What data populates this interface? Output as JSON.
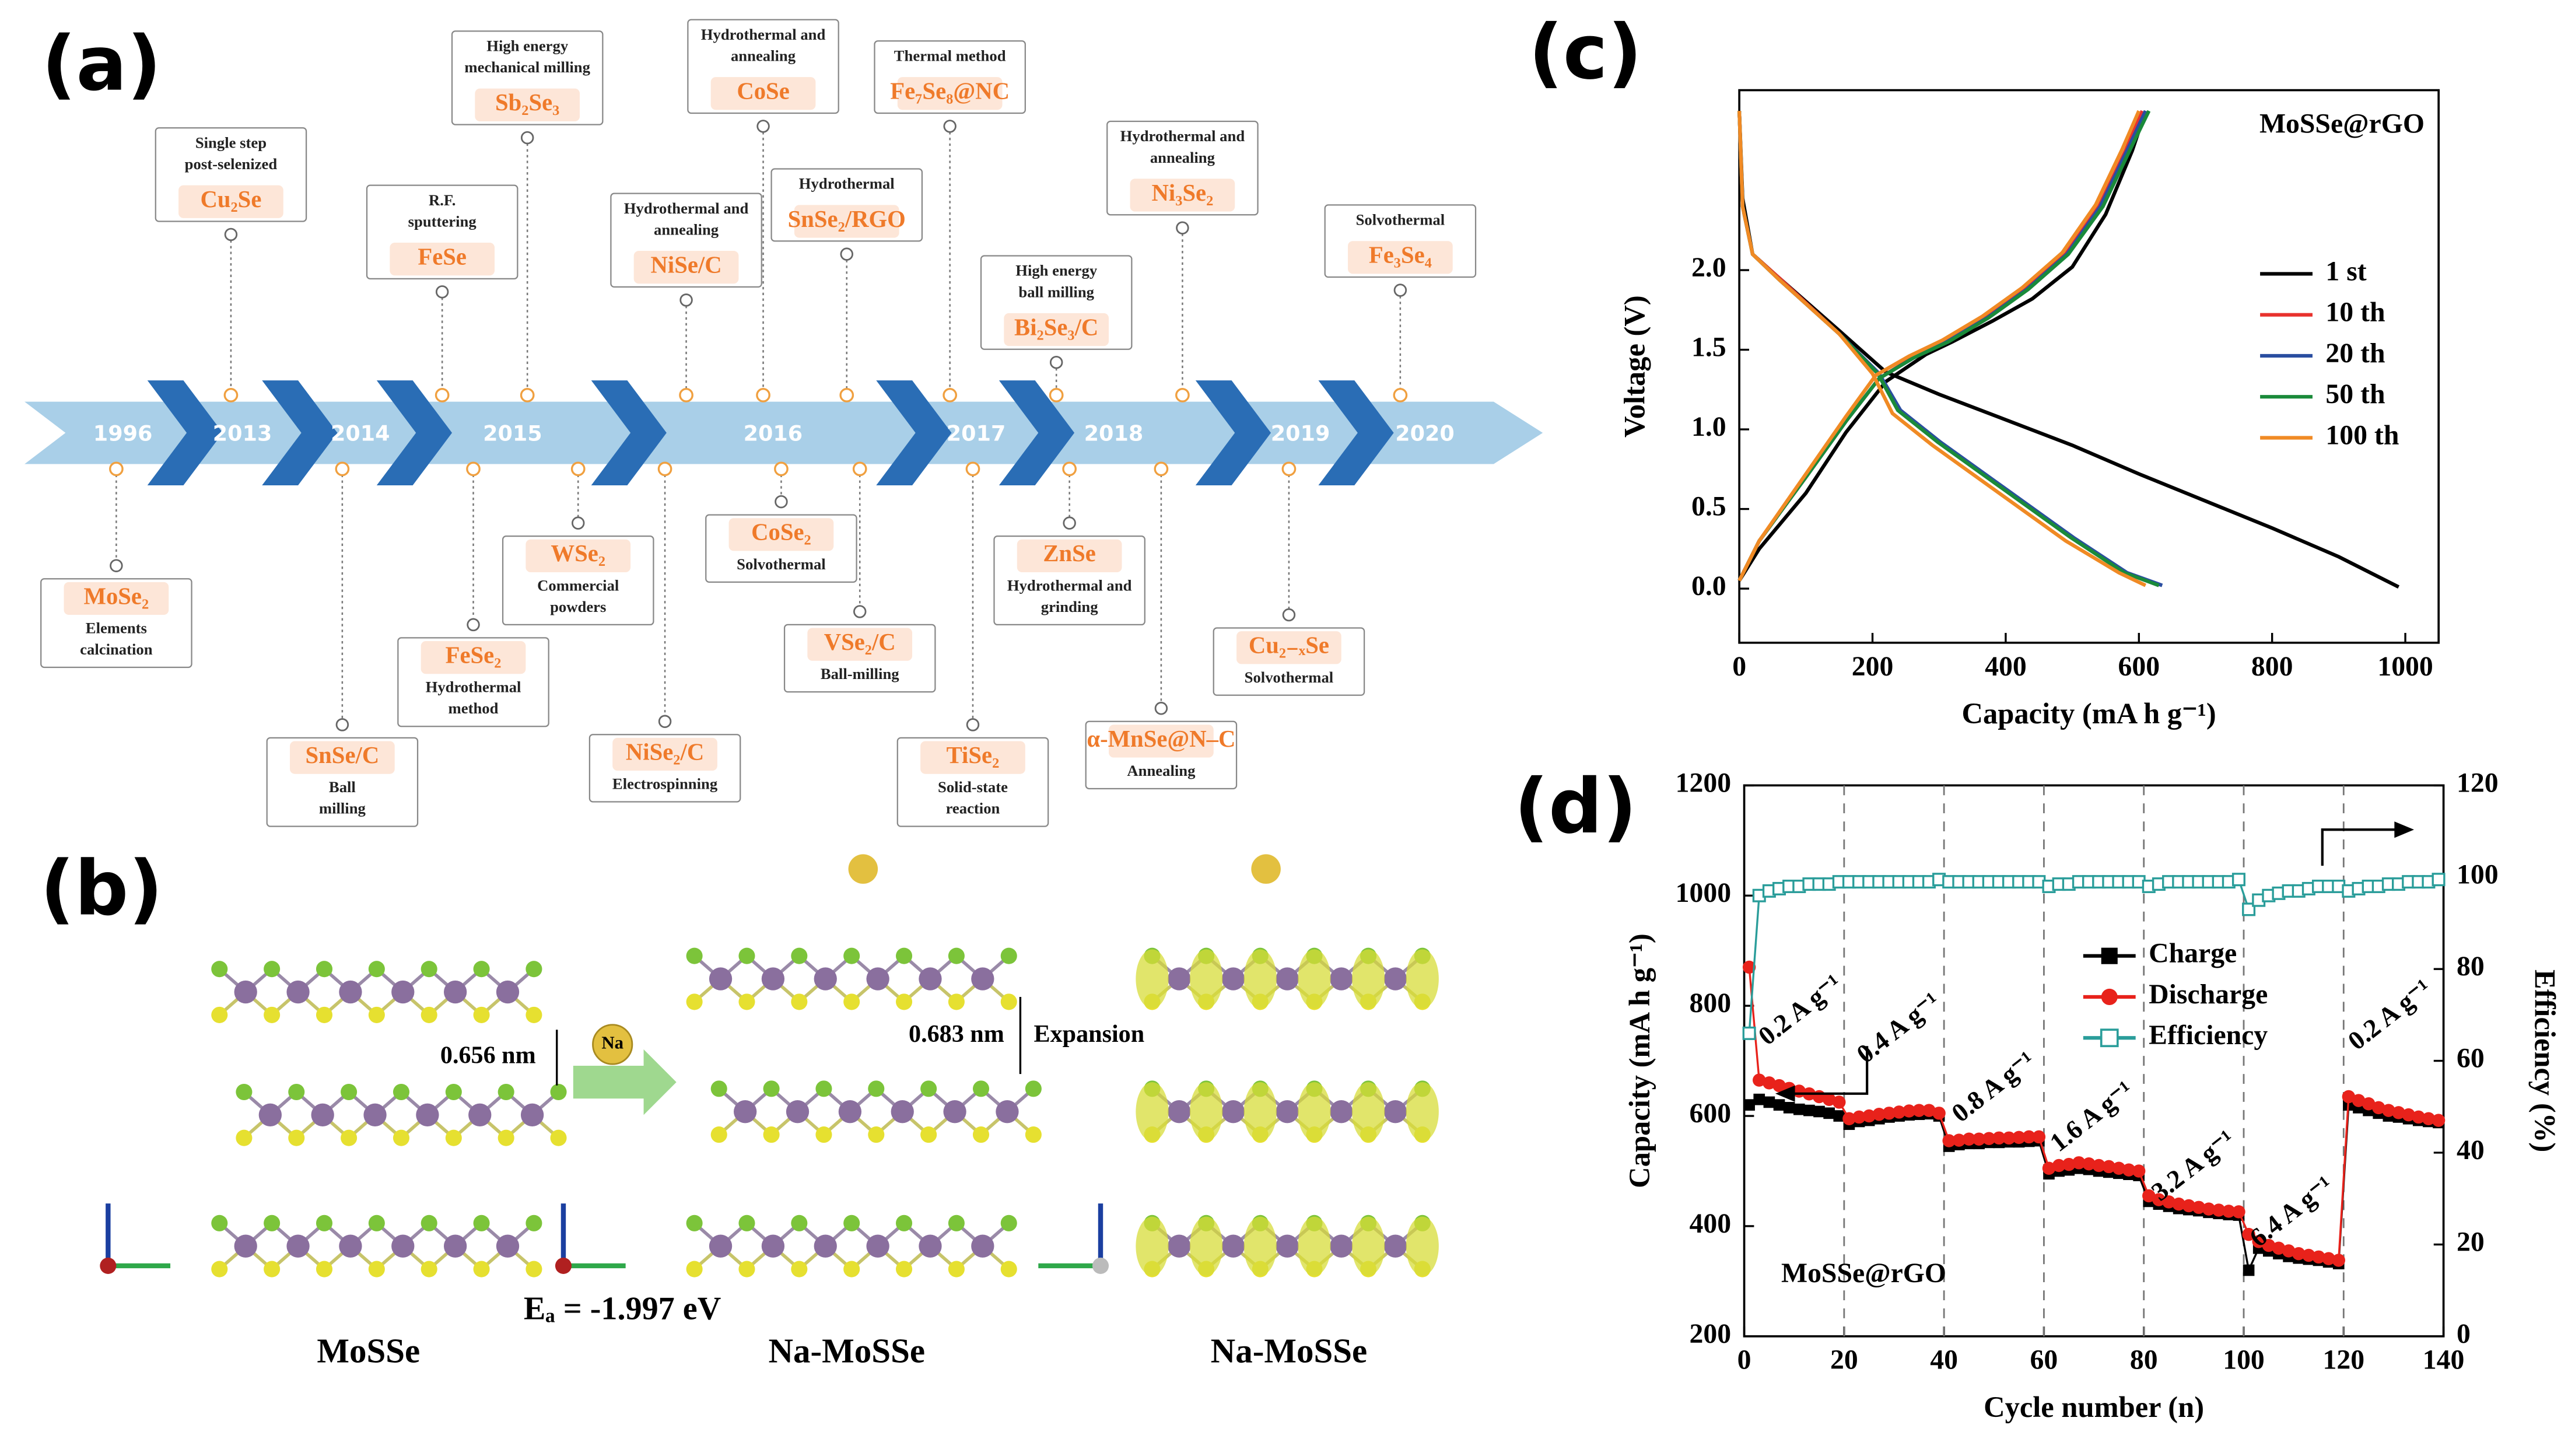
{
  "panel_labels": [
    "(a)",
    "(b)",
    "(c)",
    "(d)"
  ],
  "timeline": {
    "years": [
      "1996",
      "2013",
      "2014",
      "2015",
      "2016",
      "2017",
      "2018",
      "2019",
      "2020"
    ],
    "above": [
      {
        "material": "Cu₂Se",
        "method": [
          "Single step",
          "post-selenized"
        ]
      },
      {
        "material": "FeSe",
        "method": [
          "R.F.",
          "sputtering"
        ]
      },
      {
        "material": "Sb₂Se₃",
        "method": [
          "High energy",
          "mechanical milling"
        ]
      },
      {
        "material": "NiSe/C",
        "method": [
          "Hydrothermal and",
          "annealing"
        ]
      },
      {
        "material": "CoSe",
        "method": [
          "Hydrothermal and",
          "annealing"
        ]
      },
      {
        "material": "SnSe₂/RGO",
        "method": [
          "Hydrothermal"
        ]
      },
      {
        "material": "Fe₇Se₈@NC",
        "method": [
          "Thermal method"
        ]
      },
      {
        "material": "Bi₂Se₃/C",
        "method": [
          "High energy",
          "ball milling"
        ]
      },
      {
        "material": "Ni₃Se₂",
        "method": [
          "Hydrothermal and",
          "annealing"
        ]
      },
      {
        "material": "Fe₃Se₄",
        "method": [
          "Solvothermal"
        ]
      }
    ],
    "below": [
      {
        "material": "MoSe₂",
        "method": [
          "Elements",
          "calcination"
        ]
      },
      {
        "material": "SnSe/C",
        "method": [
          "Ball",
          "milling"
        ]
      },
      {
        "material": "FeSe₂",
        "method": [
          "Hydrothermal",
          "method"
        ]
      },
      {
        "material": "WSe₂",
        "method": [
          "Commercial",
          "powders"
        ]
      },
      {
        "material": "NiSe₂/C",
        "method": [
          "Electrospinning"
        ]
      },
      {
        "material": "CoSe₂",
        "method": [
          "Solvothermal"
        ]
      },
      {
        "material": "VSe₂/C",
        "method": [
          "Ball-milling"
        ]
      },
      {
        "material": "TiSe₂",
        "method": [
          "Solid-state",
          "reaction"
        ]
      },
      {
        "material": "ZnSe",
        "method": [
          "Hydrothermal and",
          "grinding"
        ]
      },
      {
        "material": "α-MnSe@N–C",
        "method": [
          "Annealing"
        ]
      },
      {
        "material": "Cu₂₋ₓSe",
        "method": [
          "Solvothermal"
        ]
      }
    ]
  },
  "structure": {
    "titles": [
      "MoSSe",
      "Na-MoSSe",
      "Na-MoSSe"
    ],
    "spacing_before": "0.656 nm",
    "spacing_after": "0.683 nm",
    "expansion": "Expansion",
    "ion": "Na",
    "energy": "Eₐ = -1.997 eV"
  },
  "chart_data": [
    {
      "type": "line",
      "xlabel": "Capacity (mA h g⁻¹)",
      "ylabel": "Voltage (V)",
      "annotation": "MoSSe@rGO",
      "xlim": [
        0,
        1050
      ],
      "ylim": [
        -0.34,
        3.13
      ],
      "xticks": [
        0,
        200,
        400,
        600,
        800,
        1000
      ],
      "yticks": [
        {
          "value": 0,
          "label": "0.0"
        },
        0.5,
        {
          "value": 1,
          "label": "1.0"
        },
        1.5,
        {
          "value": 2,
          "label": "2.0"
        }
      ],
      "series": [
        {
          "name": "1 st",
          "color": "#000000",
          "x": [
            0,
            5,
            20,
            60,
            150,
            220,
            300,
            400,
            500,
            600,
            700,
            800,
            900,
            990,
            null,
            0,
            30,
            100,
            160,
            220,
            280,
            320,
            380,
            440,
            500,
            550,
            590,
            610
          ],
          "values": [
            3.0,
            2.45,
            2.1,
            1.95,
            1.62,
            1.36,
            1.22,
            1.06,
            0.9,
            0.72,
            0.55,
            0.38,
            0.2,
            0.01,
            null,
            0.05,
            0.25,
            0.6,
            0.98,
            1.3,
            1.47,
            1.55,
            1.68,
            1.82,
            2.02,
            2.35,
            2.75,
            3.0
          ]
        },
        {
          "name": "10 th",
          "color": "#e8322d",
          "x": [
            0,
            5,
            20,
            60,
            150,
            210,
            240,
            300,
            400,
            500,
            580,
            630,
            null,
            0,
            30,
            100,
            160,
            210,
            260,
            310,
            370,
            430,
            490,
            540,
            580,
            605
          ],
          "values": [
            3.0,
            2.4,
            2.1,
            1.95,
            1.6,
            1.35,
            1.12,
            0.92,
            0.62,
            0.32,
            0.1,
            0.02,
            null,
            0.05,
            0.3,
            0.7,
            1.05,
            1.32,
            1.45,
            1.55,
            1.7,
            1.88,
            2.1,
            2.4,
            2.75,
            3.0
          ]
        },
        {
          "name": "20 th",
          "color": "#2a4ea0",
          "x": [
            0,
            5,
            20,
            60,
            150,
            210,
            242,
            302,
            402,
            502,
            582,
            635,
            null,
            0,
            30,
            100,
            160,
            210,
            262,
            312,
            372,
            432,
            492,
            542,
            582,
            610
          ],
          "values": [
            3.0,
            2.4,
            2.1,
            1.94,
            1.6,
            1.35,
            1.12,
            0.92,
            0.62,
            0.32,
            0.1,
            0.02,
            null,
            0.05,
            0.3,
            0.7,
            1.05,
            1.32,
            1.45,
            1.55,
            1.7,
            1.88,
            2.1,
            2.4,
            2.75,
            3.0
          ]
        },
        {
          "name": "50 th",
          "color": "#1a8a3a",
          "x": [
            0,
            5,
            20,
            60,
            150,
            208,
            238,
            298,
            398,
            498,
            578,
            630,
            null,
            0,
            30,
            100,
            160,
            210,
            262,
            314,
            374,
            434,
            494,
            546,
            586,
            615
          ],
          "values": [
            3.0,
            2.4,
            2.1,
            1.94,
            1.6,
            1.35,
            1.12,
            0.92,
            0.62,
            0.32,
            0.1,
            0.02,
            null,
            0.05,
            0.3,
            0.7,
            1.05,
            1.32,
            1.45,
            1.55,
            1.7,
            1.88,
            2.1,
            2.4,
            2.75,
            3.0
          ]
        },
        {
          "name": "100 th",
          "color": "#f08a24",
          "x": [
            0,
            5,
            20,
            60,
            150,
            200,
            230,
            290,
            390,
            490,
            570,
            610,
            null,
            0,
            30,
            100,
            160,
            205,
            255,
            305,
            365,
            425,
            485,
            535,
            575,
            600
          ],
          "values": [
            3.0,
            2.4,
            2.1,
            1.94,
            1.6,
            1.35,
            1.1,
            0.9,
            0.6,
            0.3,
            0.1,
            0.02,
            null,
            0.05,
            0.3,
            0.72,
            1.08,
            1.34,
            1.46,
            1.56,
            1.71,
            1.89,
            2.11,
            2.41,
            2.76,
            3.0
          ]
        }
      ]
    },
    {
      "type": "line",
      "xlabel": "Cycle number (n)",
      "ylabel": "Capacity (mA h g⁻¹)",
      "y2label": "Efficiency (%)",
      "annotation": "MoSSe@rGO",
      "rate_labels": [
        "0.2 A g⁻¹",
        "0.4 A g⁻¹",
        "0.8 A g⁻¹",
        "1.6 A g⁻¹",
        "3.2 A g⁻¹",
        "6.4 A g⁻¹",
        "0.2 A g⁻¹"
      ],
      "xlim": [
        0,
        140
      ],
      "ylim": [
        200,
        1200
      ],
      "y2lim": [
        0,
        120
      ],
      "xticks": [
        0,
        20,
        40,
        60,
        80,
        100,
        120,
        140
      ],
      "yticks": [
        200,
        400,
        600,
        800,
        1000,
        1200
      ],
      "y2ticks": [
        0,
        20,
        40,
        60,
        80,
        100,
        120
      ],
      "xgrid": "dashed",
      "x": [
        1,
        3,
        5,
        7,
        9,
        11,
        13,
        15,
        17,
        19,
        21,
        23,
        25,
        27,
        29,
        31,
        33,
        35,
        37,
        39,
        41,
        43,
        45,
        47,
        49,
        51,
        53,
        55,
        57,
        59,
        61,
        63,
        65,
        67,
        69,
        71,
        73,
        75,
        77,
        79,
        81,
        83,
        85,
        87,
        89,
        91,
        93,
        95,
        97,
        99,
        101,
        103,
        105,
        107,
        109,
        111,
        113,
        115,
        117,
        119,
        121,
        123,
        125,
        127,
        129,
        131,
        133,
        135,
        137,
        139
      ],
      "series": [
        {
          "name": "Charge",
          "color": "#000000",
          "marker": "square",
          "values": [
            620,
            630,
            625,
            620,
            615,
            612,
            610,
            608,
            605,
            600,
            585,
            590,
            592,
            595,
            598,
            600,
            602,
            603,
            604,
            600,
            545,
            548,
            550,
            550,
            552,
            552,
            553,
            553,
            554,
            555,
            495,
            500,
            502,
            505,
            503,
            500,
            498,
            496,
            494,
            492,
            445,
            440,
            436,
            432,
            430,
            428,
            425,
            423,
            421,
            420,
            320,
            360,
            355,
            350,
            345,
            342,
            340,
            338,
            335,
            332,
            620,
            615,
            610,
            605,
            600,
            598,
            595,
            592,
            590,
            588
          ]
        },
        {
          "name": "Discharge",
          "color": "#e8221b",
          "marker": "circle",
          "values": [
            870,
            665,
            660,
            655,
            650,
            645,
            640,
            635,
            630,
            625,
            595,
            598,
            600,
            603,
            605,
            607,
            609,
            610,
            610,
            605,
            555,
            556,
            558,
            558,
            559,
            560,
            560,
            561,
            562,
            562,
            505,
            510,
            512,
            515,
            513,
            510,
            508,
            505,
            502,
            500,
            455,
            448,
            444,
            440,
            437,
            434,
            431,
            429,
            427,
            426,
            385,
            372,
            365,
            360,
            355,
            350,
            347,
            344,
            341,
            338,
            635,
            628,
            622,
            615,
            610,
            606,
            602,
            598,
            595,
            592
          ]
        },
        {
          "name": "Efficiency",
          "color": "#2a9d9a",
          "marker": "open-square",
          "axis": "y2",
          "values": [
            66,
            96,
            97,
            97.5,
            98,
            98,
            98.5,
            98.5,
            98.5,
            99,
            99,
            99,
            99,
            99,
            99,
            99,
            99,
            99,
            99,
            99.5,
            99,
            99,
            99,
            99,
            99,
            99,
            99,
            99,
            99,
            99,
            98,
            98.5,
            98.5,
            99,
            99,
            99,
            99,
            99,
            99,
            99,
            98,
            98.5,
            99,
            99,
            99,
            99,
            99,
            99,
            99,
            99.5,
            93,
            95,
            96,
            96.5,
            97,
            97,
            97.5,
            98,
            98,
            98,
            97,
            97.5,
            98,
            98,
            98.5,
            98.5,
            99,
            99,
            99,
            99.5
          ]
        }
      ]
    }
  ]
}
